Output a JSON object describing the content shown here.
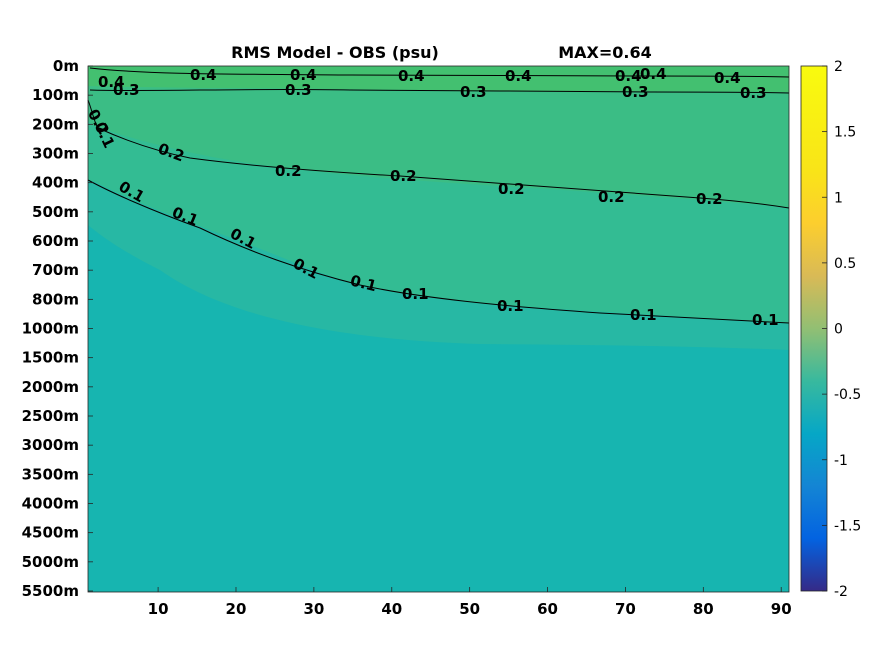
{
  "chart_data": {
    "type": "heatmap",
    "title": "RMS Model - OBS (psu)",
    "subtitle": "MAX=0.64",
    "x_ticks": [
      10,
      20,
      30,
      40,
      50,
      60,
      70,
      80,
      90
    ],
    "x_range": [
      1,
      91
    ],
    "y_tick_labels": [
      "0m",
      "100m",
      "200m",
      "300m",
      "400m",
      "500m",
      "600m",
      "700m",
      "800m",
      "1000m",
      "1500m",
      "2000m",
      "2500m",
      "3000m",
      "3500m",
      "4000m",
      "4500m",
      "5000m",
      "5500m"
    ],
    "colorbar": {
      "range": [
        -2,
        2
      ],
      "ticks": [
        "2",
        "1.5",
        "1",
        "0.5",
        "0",
        "-0.5",
        "-1",
        "-1.5",
        "-2"
      ],
      "colormap": "parula"
    },
    "contours": [
      {
        "level": "0.4",
        "labels": [
          "0.4",
          "0.4",
          "0.4",
          "0.4",
          "0.4",
          "0.4",
          "0.4",
          "0.4"
        ]
      },
      {
        "level": "0.3",
        "labels": [
          "0.3",
          "0.3",
          "0.3",
          "0.3",
          "0.3"
        ]
      },
      {
        "level": "0.2",
        "labels": [
          "0.2",
          "0.2",
          "0.2",
          "0.2",
          "0.2",
          "0.2",
          "0.2"
        ]
      },
      {
        "level": "0.1",
        "labels": [
          "0.1",
          "0.1",
          "0.1",
          "0.1",
          "0.1",
          "0.1",
          "0.1",
          "0.1",
          "0.1",
          "0.1"
        ]
      }
    ],
    "colors": {
      "v04": "#43c070",
      "v03": "#3bbd85",
      "v02": "#33bc93",
      "v01": "#27b8a4",
      "v00": "#17b5b0",
      "contour": "#000000"
    }
  }
}
